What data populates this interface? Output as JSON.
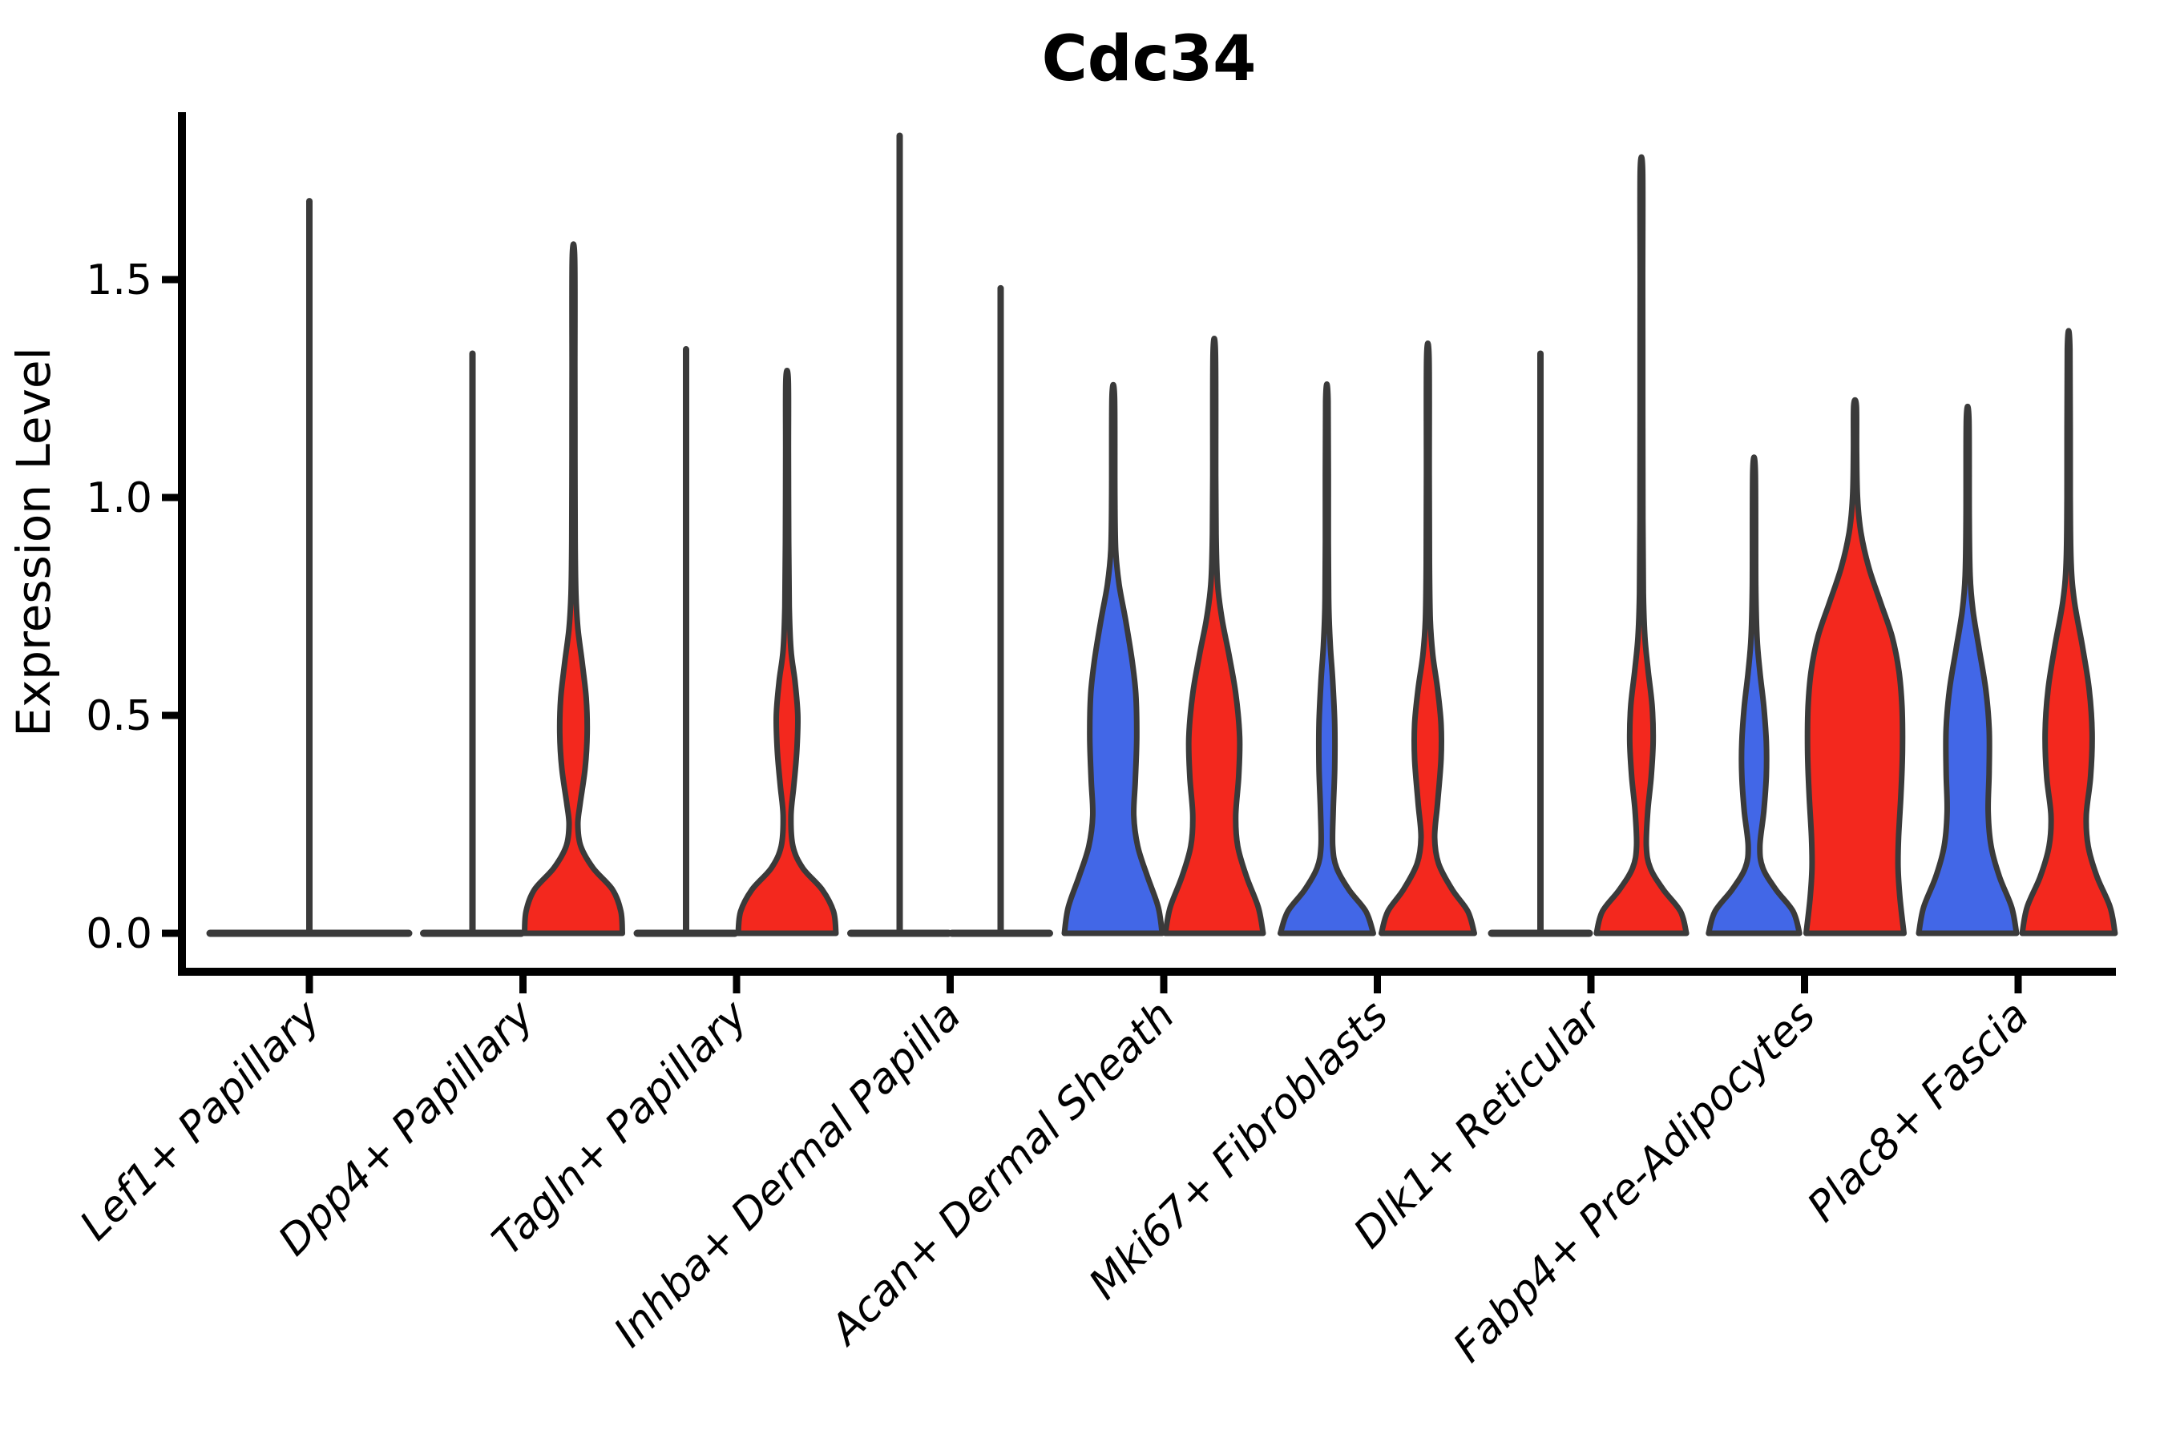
{
  "colors": {
    "blue": "#4267E7",
    "red": "#F3281E",
    "outline": "#3A3A3A",
    "axis": "#000000",
    "background": "#FFFFFF"
  },
  "chart_data": {
    "type": "violin",
    "title": "Cdc34",
    "ylabel": "Expression Level",
    "xlabel": "",
    "yticks": [
      0.0,
      0.5,
      1.0,
      1.5
    ],
    "ytick_labels": [
      "0.0",
      "0.5",
      "1.0",
      "1.5"
    ],
    "ylim": [
      -0.09,
      1.92
    ],
    "grid": false,
    "legend_position": "none",
    "x_tick_rotation_deg": 45,
    "split_violin_colors": {
      "blue": "#4267E7",
      "red": "#F3281E"
    },
    "categories": [
      "Lef1+ Papillary",
      "Dpp4+ Papillary",
      "Tagln+ Papillary",
      "Inhba+ Dermal Papilla",
      "Acan+ Dermal Sheath",
      "Mki67+ Fibroblasts",
      "Dlk1+ Reticular",
      "Fabp4+ Pre-Adipocytes",
      "Plac8+ Fascia"
    ],
    "violins": [
      {
        "category": "Lef1+ Papillary",
        "single": {
          "style": "collapsed",
          "max": 1.68
        }
      },
      {
        "category": "Dpp4+ Papillary",
        "blue": {
          "style": "collapsed",
          "max": 1.33
        },
        "red": {
          "style": "shaped",
          "max": 1.55,
          "profile": [
            [
              0,
              1.0
            ],
            [
              0.05,
              0.97
            ],
            [
              0.1,
              0.8
            ],
            [
              0.15,
              0.4
            ],
            [
              0.2,
              0.15
            ],
            [
              0.25,
              0.09
            ],
            [
              0.3,
              0.14
            ],
            [
              0.38,
              0.24
            ],
            [
              0.46,
              0.28
            ],
            [
              0.54,
              0.26
            ],
            [
              0.62,
              0.18
            ],
            [
              0.7,
              0.09
            ],
            [
              0.78,
              0.05
            ],
            [
              0.9,
              0.035
            ],
            [
              1.1,
              0.03
            ],
            [
              1.3,
              0.028
            ],
            [
              1.55,
              0.025
            ]
          ]
        }
      },
      {
        "category": "Tagln+ Papillary",
        "blue": {
          "style": "collapsed",
          "max": 1.34
        },
        "red": {
          "style": "shaped",
          "max": 1.27,
          "profile": [
            [
              0,
              1.0
            ],
            [
              0.05,
              0.95
            ],
            [
              0.1,
              0.72
            ],
            [
              0.15,
              0.32
            ],
            [
              0.2,
              0.12
            ],
            [
              0.27,
              0.08
            ],
            [
              0.34,
              0.14
            ],
            [
              0.42,
              0.2
            ],
            [
              0.5,
              0.22
            ],
            [
              0.58,
              0.16
            ],
            [
              0.65,
              0.08
            ],
            [
              0.75,
              0.045
            ],
            [
              0.9,
              0.032
            ],
            [
              1.1,
              0.028
            ],
            [
              1.27,
              0.025
            ]
          ]
        }
      },
      {
        "category": "Inhba+ Dermal Papilla",
        "blue": {
          "style": "collapsed",
          "max": 1.83
        },
        "red": {
          "style": "collapsed",
          "max": 1.48
        }
      },
      {
        "category": "Acan+ Dermal Sheath",
        "blue": {
          "style": "shaped",
          "max": 1.23,
          "profile": [
            [
              0,
              1.0
            ],
            [
              0.06,
              0.92
            ],
            [
              0.13,
              0.7
            ],
            [
              0.2,
              0.5
            ],
            [
              0.27,
              0.42
            ],
            [
              0.35,
              0.45
            ],
            [
              0.45,
              0.48
            ],
            [
              0.55,
              0.46
            ],
            [
              0.63,
              0.38
            ],
            [
              0.72,
              0.25
            ],
            [
              0.8,
              0.12
            ],
            [
              0.88,
              0.05
            ],
            [
              1.0,
              0.032
            ],
            [
              1.23,
              0.026
            ]
          ]
        },
        "red": {
          "style": "shaped",
          "max": 1.33,
          "profile": [
            [
              0,
              1.0
            ],
            [
              0.06,
              0.9
            ],
            [
              0.13,
              0.66
            ],
            [
              0.2,
              0.48
            ],
            [
              0.27,
              0.44
            ],
            [
              0.36,
              0.5
            ],
            [
              0.45,
              0.52
            ],
            [
              0.55,
              0.44
            ],
            [
              0.64,
              0.3
            ],
            [
              0.72,
              0.16
            ],
            [
              0.8,
              0.07
            ],
            [
              0.9,
              0.04
            ],
            [
              1.05,
              0.03
            ],
            [
              1.33,
              0.025
            ]
          ]
        }
      },
      {
        "category": "Mki67+ Fibroblasts",
        "blue": {
          "style": "shaped",
          "max": 1.22,
          "profile": [
            [
              0,
              0.95
            ],
            [
              0.05,
              0.8
            ],
            [
              0.1,
              0.45
            ],
            [
              0.15,
              0.2
            ],
            [
              0.2,
              0.12
            ],
            [
              0.28,
              0.13
            ],
            [
              0.38,
              0.16
            ],
            [
              0.48,
              0.16
            ],
            [
              0.58,
              0.12
            ],
            [
              0.66,
              0.07
            ],
            [
              0.75,
              0.04
            ],
            [
              0.9,
              0.03
            ],
            [
              1.22,
              0.025
            ]
          ]
        },
        "red": {
          "style": "shaped",
          "max": 1.32,
          "profile": [
            [
              0,
              0.95
            ],
            [
              0.05,
              0.82
            ],
            [
              0.1,
              0.5
            ],
            [
              0.16,
              0.22
            ],
            [
              0.22,
              0.14
            ],
            [
              0.3,
              0.2
            ],
            [
              0.4,
              0.27
            ],
            [
              0.48,
              0.27
            ],
            [
              0.56,
              0.2
            ],
            [
              0.64,
              0.1
            ],
            [
              0.72,
              0.05
            ],
            [
              0.85,
              0.033
            ],
            [
              1.05,
              0.028
            ],
            [
              1.32,
              0.025
            ]
          ]
        }
      },
      {
        "category": "Dlk1+ Reticular",
        "blue": {
          "style": "collapsed",
          "max": 1.33
        },
        "red": {
          "style": "shaped",
          "max": 1.75,
          "profile": [
            [
              0,
              0.92
            ],
            [
              0.05,
              0.8
            ],
            [
              0.1,
              0.45
            ],
            [
              0.15,
              0.18
            ],
            [
              0.2,
              0.1
            ],
            [
              0.28,
              0.13
            ],
            [
              0.36,
              0.2
            ],
            [
              0.44,
              0.24
            ],
            [
              0.52,
              0.22
            ],
            [
              0.6,
              0.14
            ],
            [
              0.68,
              0.07
            ],
            [
              0.78,
              0.04
            ],
            [
              0.95,
              0.03
            ],
            [
              1.2,
              0.027
            ],
            [
              1.5,
              0.025
            ],
            [
              1.75,
              0.024
            ]
          ]
        }
      },
      {
        "category": "Fabp4+ Pre-Adipocytes",
        "blue": {
          "style": "shaped",
          "max": 1.06,
          "profile": [
            [
              0,
              0.93
            ],
            [
              0.05,
              0.8
            ],
            [
              0.1,
              0.45
            ],
            [
              0.15,
              0.18
            ],
            [
              0.2,
              0.12
            ],
            [
              0.28,
              0.2
            ],
            [
              0.36,
              0.25
            ],
            [
              0.44,
              0.25
            ],
            [
              0.52,
              0.2
            ],
            [
              0.6,
              0.12
            ],
            [
              0.68,
              0.06
            ],
            [
              0.8,
              0.035
            ],
            [
              1.06,
              0.026
            ]
          ]
        },
        "red": {
          "style": "shaped",
          "max": 1.21,
          "profile": [
            [
              0,
              1.0
            ],
            [
              0.08,
              0.92
            ],
            [
              0.15,
              0.88
            ],
            [
              0.22,
              0.89
            ],
            [
              0.32,
              0.94
            ],
            [
              0.42,
              0.97
            ],
            [
              0.52,
              0.96
            ],
            [
              0.6,
              0.9
            ],
            [
              0.68,
              0.76
            ],
            [
              0.76,
              0.52
            ],
            [
              0.84,
              0.28
            ],
            [
              0.92,
              0.12
            ],
            [
              1.0,
              0.05
            ],
            [
              1.1,
              0.032
            ],
            [
              1.21,
              0.028
            ]
          ]
        }
      },
      {
        "category": "Plac8+ Fascia",
        "blue": {
          "style": "shaped",
          "max": 1.18,
          "profile": [
            [
              0,
              1.0
            ],
            [
              0.06,
              0.9
            ],
            [
              0.13,
              0.65
            ],
            [
              0.2,
              0.48
            ],
            [
              0.28,
              0.42
            ],
            [
              0.37,
              0.44
            ],
            [
              0.47,
              0.44
            ],
            [
              0.56,
              0.37
            ],
            [
              0.65,
              0.24
            ],
            [
              0.74,
              0.11
            ],
            [
              0.82,
              0.05
            ],
            [
              0.95,
              0.032
            ],
            [
              1.18,
              0.026
            ]
          ]
        },
        "red": {
          "style": "shaped",
          "max": 1.34,
          "profile": [
            [
              0,
              0.95
            ],
            [
              0.06,
              0.85
            ],
            [
              0.13,
              0.58
            ],
            [
              0.2,
              0.4
            ],
            [
              0.27,
              0.36
            ],
            [
              0.36,
              0.45
            ],
            [
              0.46,
              0.48
            ],
            [
              0.56,
              0.42
            ],
            [
              0.66,
              0.28
            ],
            [
              0.76,
              0.12
            ],
            [
              0.85,
              0.05
            ],
            [
              1.0,
              0.033
            ],
            [
              1.34,
              0.026
            ]
          ]
        }
      }
    ]
  }
}
